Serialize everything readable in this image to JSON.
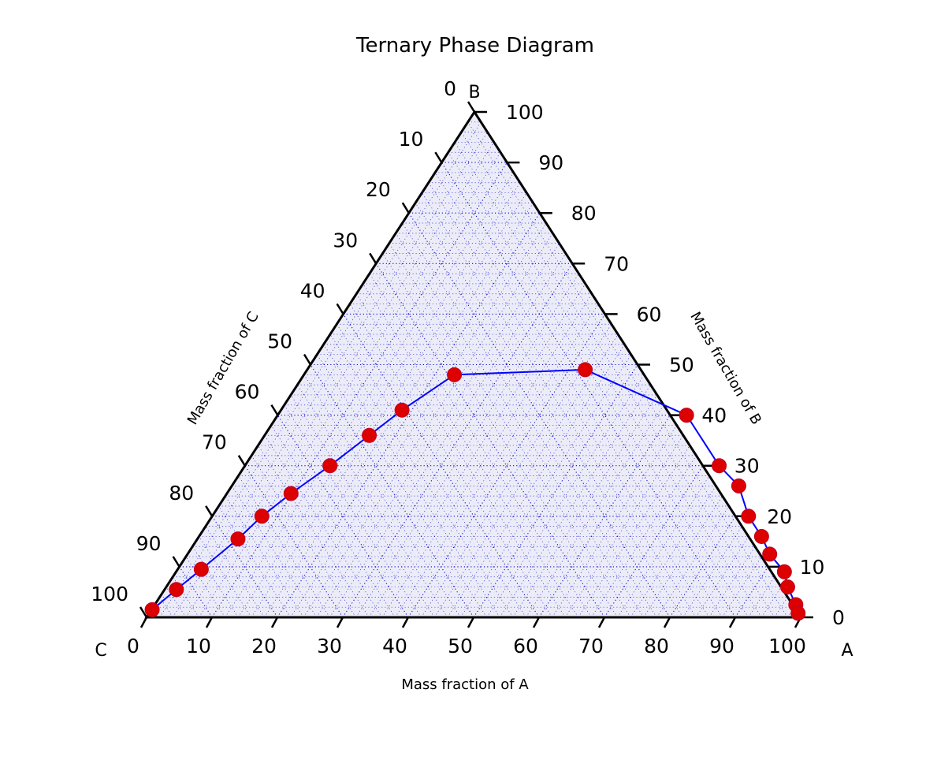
{
  "chart_data": {
    "type": "scatter",
    "title": "Ternary Phase Diagram",
    "corner_labels": {
      "a": "A",
      "b": "B",
      "c": "C"
    },
    "axis_labels": {
      "a": "Mass fraction of A",
      "b": "Mass fraction of B",
      "c": "Mass fraction of C"
    },
    "tick_labels": [
      "0",
      "10",
      "20",
      "30",
      "40",
      "50",
      "60",
      "70",
      "80",
      "90",
      "100"
    ],
    "range": [
      0,
      100
    ],
    "grid": true,
    "grid_color": "#0000cc",
    "background_color": "#ececf8",
    "line_color": "#0000ff",
    "marker_color": "#dd0000",
    "series": [
      {
        "points": [
          {
            "a": 0.1,
            "b": 1.5
          },
          {
            "a": 1.8,
            "b": 5.5
          },
          {
            "a": 3.6,
            "b": 9.5
          },
          {
            "a": 6.2,
            "b": 15.5
          },
          {
            "a": 7.6,
            "b": 20.0
          },
          {
            "a": 9.8,
            "b": 24.5
          },
          {
            "a": 13.0,
            "b": 30.0
          },
          {
            "a": 16.0,
            "b": 36.0
          },
          {
            "a": 18.5,
            "b": 41.0
          },
          {
            "a": 23.0,
            "b": 48.0
          },
          {
            "a": 42.5,
            "b": 49.0
          },
          {
            "a": 62.5,
            "b": 40.0
          },
          {
            "a": 72.5,
            "b": 30.0
          },
          {
            "a": 77.5,
            "b": 26.0
          },
          {
            "a": 82.0,
            "b": 20.0
          },
          {
            "a": 86.0,
            "b": 16.0
          },
          {
            "a": 89.0,
            "b": 12.5
          },
          {
            "a": 93.0,
            "b": 9.0
          },
          {
            "a": 95.0,
            "b": 6.0
          },
          {
            "a": 98.0,
            "b": 2.5
          },
          {
            "a": 99.2,
            "b": 0.8
          }
        ]
      }
    ]
  }
}
